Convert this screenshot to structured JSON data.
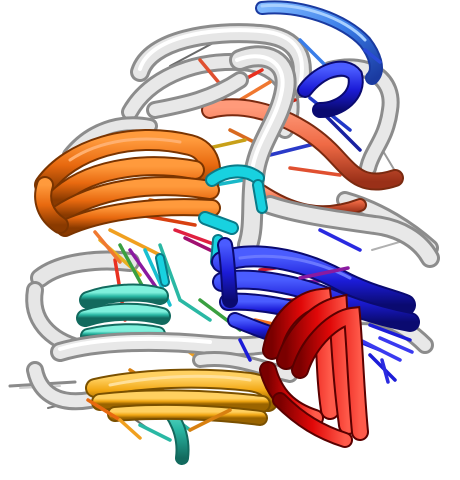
{
  "scene": {
    "kind": "molecular-structure-rendering",
    "background": "#ffffff",
    "colors": {
      "backbone": "#e6e6e6",
      "backbone_shade": "#9a9a9a",
      "orange": "#e8690f",
      "salmon": "#ef6a45",
      "blue": "#1c1cd8",
      "deep_blue": "#1a10b8",
      "sky_blue": "#3a7de8",
      "red": "#e00808",
      "gold": "#f2a713",
      "teal": "#2ab8a4",
      "cyan": "#18d2e0",
      "green": "#3aa040",
      "purple": "#8a1aa0"
    }
  }
}
